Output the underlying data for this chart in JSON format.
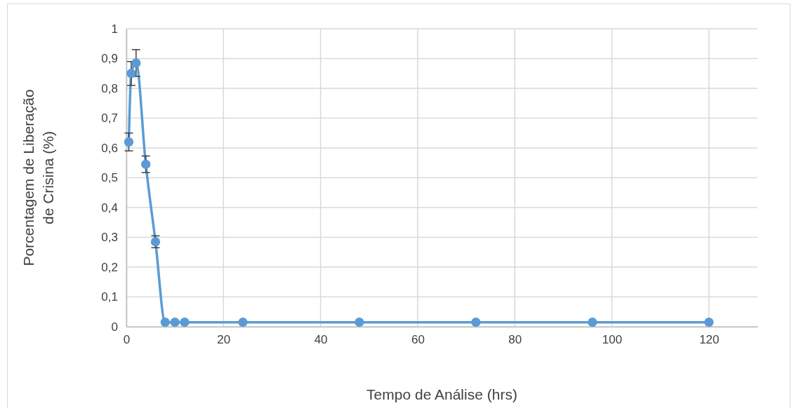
{
  "chart_data": {
    "type": "line",
    "xlabel": "Tempo de Análise (hrs)",
    "ylabel": "Porcentagem de Liberação de Crisina (%)",
    "x": [
      0.5,
      1,
      2,
      4,
      6,
      8,
      10,
      12,
      24,
      48,
      72,
      96,
      120
    ],
    "series": [
      {
        "color": "#5b9bd5",
        "values": [
          0.62,
          0.85,
          0.885,
          0.545,
          0.285,
          0.015,
          0.015,
          0.015,
          0.015,
          0.015,
          0.015,
          0.015,
          0.015
        ],
        "errors": [
          0.03,
          0.04,
          0.045,
          0.028,
          0.02,
          null,
          null,
          null,
          null,
          null,
          null,
          null,
          null
        ]
      }
    ],
    "xlim": [
      0,
      130
    ],
    "xticks": [
      0,
      20,
      40,
      60,
      80,
      100,
      120
    ],
    "ylim": [
      0,
      1
    ],
    "yticks": [
      0,
      {
        "value": 0.1,
        "label": "0,1"
      },
      {
        "value": 0.2,
        "label": "0,2"
      },
      {
        "value": 0.3,
        "label": "0,3"
      },
      {
        "value": 0.4,
        "label": "0,4"
      },
      {
        "value": 0.5,
        "label": "0,5"
      },
      {
        "value": 0.6,
        "label": "0,6"
      },
      {
        "value": 0.7,
        "label": "0,7"
      },
      {
        "value": 0.8,
        "label": "0,8"
      },
      {
        "value": 0.9,
        "label": "0,9"
      },
      1
    ],
    "grid": true,
    "marker": "circle",
    "line_style": "solid"
  }
}
